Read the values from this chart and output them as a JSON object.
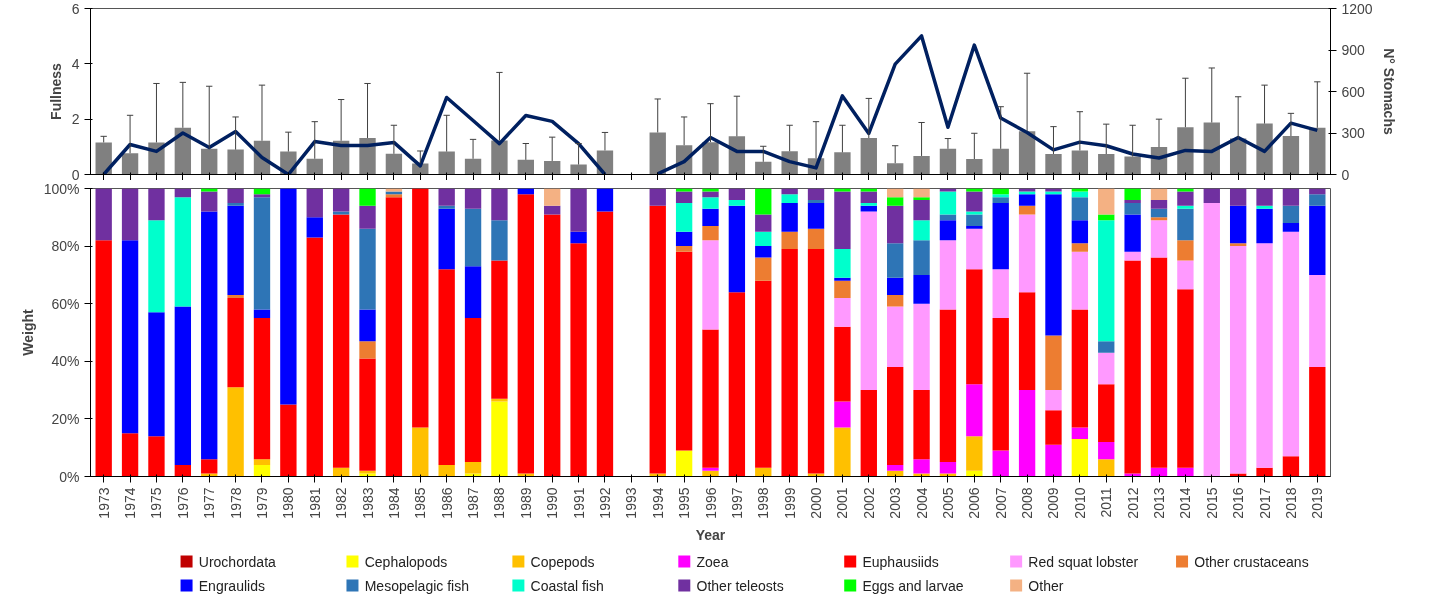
{
  "chart_data": [
    {
      "type": "bar",
      "categories": [
        "1973",
        "1974",
        "1975",
        "1976",
        "1977",
        "1978",
        "1979",
        "1980",
        "1981",
        "1982",
        "1983",
        "1984",
        "1985",
        "1986",
        "1987",
        "1988",
        "1989",
        "1990",
        "1991",
        "1992",
        "1993",
        "1994",
        "1995",
        "1996",
        "1997",
        "1998",
        "1999",
        "2000",
        "2001",
        "2002",
        "2003",
        "2004",
        "2005",
        "2006",
        "2007",
        "2008",
        "2009",
        "2010",
        "2011",
        "2012",
        "2013",
        "2014",
        "2015",
        "2016",
        "2017",
        "2018",
        "2019"
      ],
      "ylabel": "Fullness",
      "y2label": "N° Stomachs",
      "ylim": [
        0,
        6
      ],
      "yticks": [
        0,
        2,
        4,
        6
      ],
      "y2lim": [
        0,
        1200
      ],
      "y2ticks": [
        0,
        300,
        600,
        900,
        1200
      ],
      "tick_labels": "y",
      "grid": false,
      "series": [
        {
          "type": "bar",
          "color": "#808080",
          "values": [
            1.16,
            0.77,
            1.16,
            1.69,
            0.93,
            0.9,
            1.22,
            0.83,
            0.57,
            1.22,
            1.32,
            0.75,
            0.4,
            0.83,
            0.57,
            1.23,
            0.53,
            0.49,
            0.36,
            0.87,
            null,
            1.52,
            1.06,
            1.17,
            1.38,
            0.46,
            0.84,
            0.59,
            0.8,
            1.32,
            0.41,
            0.67,
            0.93,
            0.56,
            0.93,
            1.56,
            0.74,
            0.87,
            0.74,
            0.65,
            0.99,
            1.71,
            1.88,
            1.3,
            1.84,
            1.39,
            1.69
          ],
          "errors": [
            [
              1.16,
              1.38
            ],
            [
              0.77,
              2.14
            ],
            [
              1.16,
              3.29
            ],
            [
              1.69,
              3.33
            ],
            [
              0.93,
              3.19
            ],
            [
              0.9,
              2.08
            ],
            [
              1.22,
              3.23
            ],
            [
              0.83,
              1.53
            ],
            [
              0.57,
              1.91
            ],
            [
              1.22,
              2.71
            ],
            [
              1.32,
              3.29
            ],
            [
              0.75,
              1.78
            ],
            [
              0.4,
              0.85
            ],
            [
              0.83,
              2.14
            ],
            [
              0.57,
              1.27
            ],
            [
              1.23,
              3.69
            ],
            [
              0.53,
              1.12
            ],
            [
              0.49,
              1.35
            ],
            [
              0.36,
              1.12
            ],
            [
              0.87,
              1.52
            ],
            null,
            [
              1.52,
              2.73
            ],
            [
              1.06,
              2.08
            ],
            [
              1.17,
              2.56
            ],
            [
              1.38,
              2.83
            ],
            [
              0.46,
              1.02
            ],
            [
              0.84,
              1.78
            ],
            [
              0.59,
              1.91
            ],
            [
              0.8,
              1.78
            ],
            [
              1.32,
              2.75
            ],
            [
              0.41,
              1.04
            ],
            [
              0.67,
              1.88
            ],
            [
              0.93,
              1.3
            ],
            [
              0.56,
              1.49
            ],
            [
              0.93,
              2.45
            ],
            [
              1.56,
              3.66
            ],
            [
              0.74,
              1.73
            ],
            [
              0.87,
              2.27
            ],
            [
              0.74,
              1.82
            ],
            [
              0.65,
              1.78
            ],
            [
              0.99,
              2.0
            ],
            [
              1.71,
              3.48
            ],
            [
              1.88,
              3.85
            ],
            [
              1.3,
              2.81
            ],
            [
              1.84,
              3.23
            ],
            [
              1.39,
              2.21
            ],
            [
              1.69,
              3.35
            ]
          ]
        },
        {
          "type": "line",
          "axis": "y2",
          "color": "#002060",
          "values": [
            0,
            217,
            167,
            300,
            195,
            310,
            123,
            0,
            238,
            210,
            210,
            232,
            62,
            557,
            390,
            223,
            427,
            384,
            223,
            0,
            null,
            5,
            93,
            267,
            167,
            167,
            93,
            48,
            568,
            297,
            798,
            1002,
            341,
            935,
            408,
            304,
            178,
            234,
            208,
            148,
            119,
            174,
            167,
            267,
            167,
            371,
            319
          ]
        }
      ]
    },
    {
      "type": "bar",
      "stacked": true,
      "categories": [
        "1973",
        "1974",
        "1975",
        "1976",
        "1977",
        "1978",
        "1979",
        "1980",
        "1981",
        "1982",
        "1983",
        "1984",
        "1985",
        "1986",
        "1987",
        "1988",
        "1989",
        "1990",
        "1991",
        "1992",
        "1993",
        "1994",
        "1995",
        "1996",
        "1997",
        "1998",
        "1999",
        "2000",
        "2001",
        "2002",
        "2003",
        "2004",
        "2005",
        "2006",
        "2007",
        "2008",
        "2009",
        "2010",
        "2011",
        "2012",
        "2013",
        "2014",
        "2015",
        "2016",
        "2017",
        "2018",
        "2019"
      ],
      "xlabel": "Year",
      "ylabel": "Weight",
      "ylim": [
        0,
        100
      ],
      "yticks": [
        {
          "value": 0,
          "label": "0%"
        },
        {
          "value": 20,
          "label": "20%"
        },
        {
          "value": 40,
          "label": "40%"
        },
        {
          "value": 60,
          "label": "60%"
        },
        {
          "value": 80,
          "label": "80%"
        },
        {
          "value": 100,
          "label": "100%"
        }
      ],
      "grid": false,
      "legend": "bottom",
      "series": [
        {
          "name": "Urochordata",
          "color": "#c00000",
          "values": [
            0,
            0,
            0,
            0,
            0,
            0,
            0,
            0,
            0,
            0,
            0,
            0,
            0,
            0,
            0,
            0,
            0,
            0,
            0,
            0,
            null,
            0,
            0,
            0,
            0,
            0,
            0,
            0,
            0,
            0,
            0,
            0,
            0,
            0,
            0,
            0,
            0,
            0,
            0,
            0,
            0,
            0,
            0,
            0,
            0,
            0,
            0
          ]
        },
        {
          "name": "Cephalopods",
          "color": "#ffff00",
          "values": [
            0,
            0,
            0,
            0,
            0,
            0,
            4,
            0,
            0,
            0,
            1,
            0,
            0,
            0,
            1,
            26,
            0,
            0,
            0,
            0,
            null,
            0,
            9,
            0,
            0,
            0,
            0,
            0,
            0,
            0,
            0,
            0,
            0,
            2,
            0,
            0,
            0,
            13,
            0,
            0,
            0,
            0,
            0,
            0,
            0,
            0,
            0
          ]
        },
        {
          "name": "Copepods",
          "color": "#ffc000",
          "values": [
            0,
            0,
            0,
            0,
            1,
            31,
            2,
            0,
            0,
            3,
            1,
            0,
            17,
            4,
            4,
            1,
            1,
            0,
            0,
            0,
            null,
            1,
            0,
            2,
            0,
            3,
            0,
            1,
            17,
            0,
            2,
            1,
            1,
            12,
            0,
            0,
            0,
            0,
            6,
            0,
            0,
            0,
            0,
            0,
            0,
            0,
            0
          ]
        },
        {
          "name": "Zoea",
          "color": "#ff00ff",
          "values": [
            0,
            0,
            0,
            0,
            0,
            0,
            0,
            0,
            0,
            0,
            0,
            0,
            0,
            0,
            0,
            0,
            0,
            0,
            0,
            0,
            null,
            0,
            0,
            1,
            0,
            0,
            0,
            0,
            9,
            0,
            2,
            5,
            4,
            18,
            9,
            30,
            11,
            4,
            6,
            1,
            3,
            3,
            0,
            0,
            0,
            0,
            0
          ]
        },
        {
          "name": "Euphausiids",
          "color": "#ff0000",
          "values": [
            82,
            15,
            14,
            4,
            5,
            31,
            49,
            25,
            83,
            88,
            39,
            97,
            83,
            68,
            50,
            48,
            97,
            91,
            81,
            92,
            null,
            93,
            69,
            48,
            64,
            65,
            79,
            78,
            26,
            30,
            34,
            24,
            53,
            40,
            46,
            34,
            12,
            41,
            20,
            74,
            73,
            62,
            0,
            1,
            3,
            7,
            38
          ]
        },
        {
          "name": "Red squat lobster",
          "color": "#ff99ff",
          "values": [
            0,
            0,
            0,
            0,
            0,
            0,
            0,
            0,
            0,
            0,
            0,
            0,
            0,
            0,
            0,
            0,
            0,
            0,
            0,
            0,
            null,
            0,
            0,
            31,
            0,
            0,
            0,
            0,
            10,
            62,
            21,
            30,
            24,
            14,
            17,
            27,
            7,
            20,
            11,
            3,
            13,
            10,
            95,
            79,
            78,
            78,
            32
          ]
        },
        {
          "name": "Other crustaceans",
          "color": "#ed7d31",
          "values": [
            0,
            0,
            0,
            0,
            0,
            1,
            0,
            0,
            0,
            0,
            6,
            1,
            0,
            0,
            0,
            0,
            0,
            0,
            0,
            0,
            null,
            0,
            2,
            5,
            0,
            8,
            6,
            7,
            6,
            0,
            4,
            0,
            0,
            0,
            0,
            3,
            19,
            3,
            0,
            0,
            1,
            7,
            0,
            1,
            0,
            0,
            0
          ]
        },
        {
          "name": "Engraulids",
          "color": "#0000ff",
          "values": [
            0,
            67,
            43,
            55,
            86,
            31,
            3,
            75,
            7,
            0,
            11,
            0,
            0,
            21,
            18,
            0,
            2,
            0,
            4,
            8,
            null,
            0,
            5,
            6,
            30,
            4,
            10,
            9,
            1,
            2,
            6,
            10,
            7,
            1,
            23,
            4,
            49,
            8,
            0,
            13,
            0,
            0,
            0,
            13,
            12,
            3,
            24
          ]
        },
        {
          "name": "Mesopelagic fish",
          "color": "#2e75b6",
          "values": [
            0,
            0,
            0,
            0,
            0,
            1,
            39,
            0,
            0,
            1,
            28,
            1,
            0,
            1,
            20,
            14,
            0,
            0,
            0,
            0,
            null,
            0,
            0,
            0,
            0,
            0,
            0,
            1,
            0,
            0,
            12,
            12,
            2,
            4,
            2,
            0,
            0,
            8,
            4,
            4,
            3,
            11,
            0,
            0,
            0,
            6,
            4
          ]
        },
        {
          "name": "Coastal fish",
          "color": "#00ffcc",
          "values": [
            0,
            0,
            32,
            38,
            0,
            0,
            0,
            0,
            0,
            0,
            0,
            0,
            0,
            0,
            0,
            0,
            0,
            0,
            0,
            0,
            null,
            0,
            10,
            4,
            2,
            5,
            3,
            0,
            10,
            1,
            0,
            7,
            8,
            1,
            1,
            1,
            1,
            2,
            42,
            0,
            0,
            1,
            0,
            0,
            1,
            0,
            0
          ]
        },
        {
          "name": "Other teleosts",
          "color": "#7030a0",
          "values": [
            18,
            18,
            11,
            3,
            7,
            5,
            1,
            0,
            10,
            8,
            8,
            0,
            0,
            6,
            7,
            11,
            0,
            3,
            15,
            0,
            null,
            6,
            4,
            2,
            4,
            6,
            2,
            4,
            20,
            4,
            13,
            7,
            1,
            7,
            0,
            1,
            1,
            0,
            0,
            1,
            3,
            5,
            5,
            6,
            6,
            6,
            2
          ]
        },
        {
          "name": "Eggs and larvae",
          "color": "#00ff00",
          "values": [
            0,
            0,
            0,
            0,
            1,
            0,
            2,
            0,
            0,
            0,
            6,
            0,
            0,
            0,
            0,
            0,
            0,
            0,
            0,
            0,
            null,
            0,
            1,
            1,
            0,
            9,
            0,
            0,
            1,
            1,
            3,
            1,
            0,
            1,
            2,
            0,
            0,
            1,
            2,
            4,
            0,
            1,
            0,
            0,
            0,
            0,
            0
          ]
        },
        {
          "name": "Other",
          "color": "#f4b183",
          "values": [
            0,
            0,
            0,
            0,
            0,
            0,
            0,
            0,
            0,
            0,
            0,
            1,
            0,
            0,
            0,
            0,
            0,
            6,
            0,
            0,
            null,
            0,
            0,
            0,
            0,
            0,
            0,
            0,
            0,
            0,
            3,
            3,
            0,
            0,
            0,
            0,
            0,
            0,
            9,
            0,
            4,
            0,
            0,
            0,
            0,
            0,
            0
          ]
        }
      ]
    }
  ]
}
